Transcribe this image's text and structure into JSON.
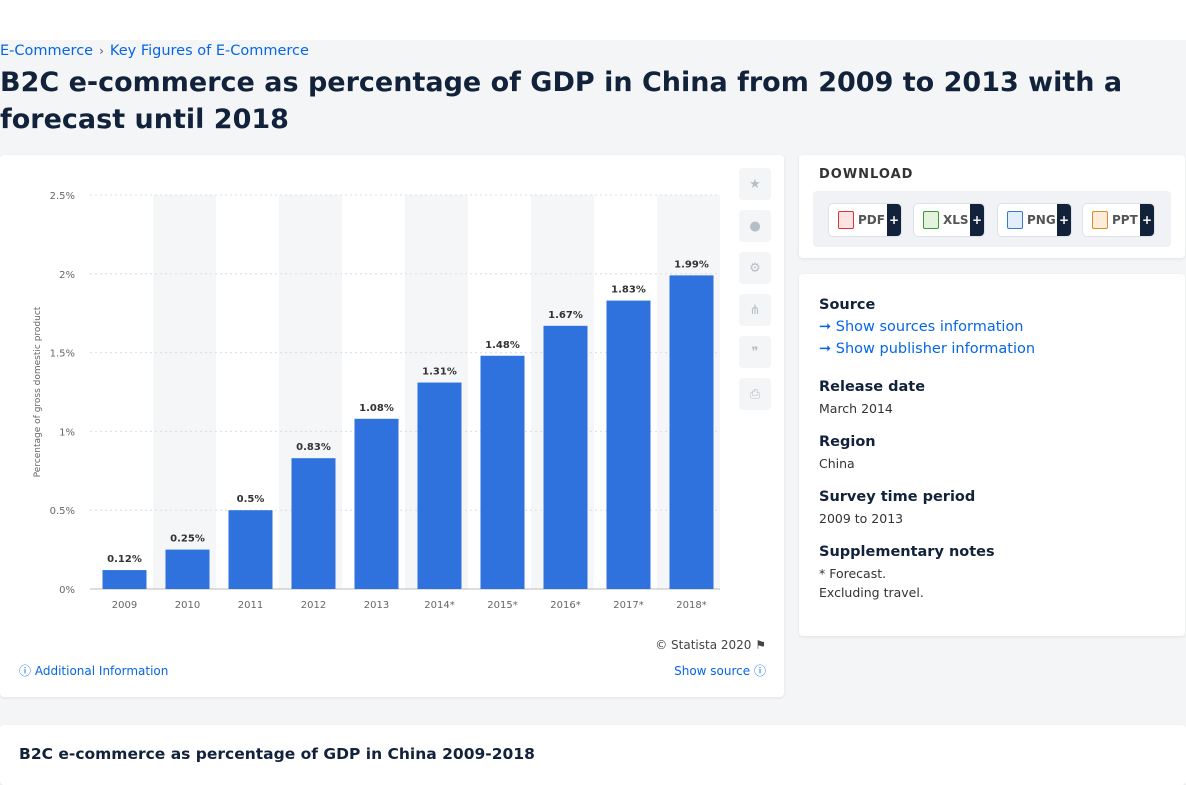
{
  "breadcrumb": [
    "E-Commerce",
    "Key Figures of E-Commerce"
  ],
  "page_title": "B2C e-commerce as percentage of GDP in China from 2009 to 2013 with a forecast until 2018",
  "chart_data": {
    "type": "bar",
    "categories": [
      "2009",
      "2010",
      "2011",
      "2012",
      "2013",
      "2014*",
      "2015*",
      "2016*",
      "2017*",
      "2018*"
    ],
    "values": [
      0.12,
      0.25,
      0.5,
      0.83,
      1.08,
      1.31,
      1.48,
      1.67,
      1.83,
      1.99
    ],
    "data_labels": [
      "0.12%",
      "0.25%",
      "0.5%",
      "0.83%",
      "1.08%",
      "1.31%",
      "1.48%",
      "1.67%",
      "1.83%",
      "1.99%"
    ],
    "ylabel": "Percentage of gross domestic product",
    "ylim": [
      0,
      2.5
    ],
    "yticks": [
      "0%",
      "0.5%",
      "1%",
      "1.5%",
      "2%",
      "2.5%"
    ],
    "bar_color": "#2f72de",
    "grid": true
  },
  "chart_footer": {
    "copyright": "© Statista 2020",
    "additional_info": "Additional Information",
    "show_source": "Show source"
  },
  "download": {
    "heading": "DOWNLOAD",
    "formats": [
      "PDF",
      "XLS",
      "PNG",
      "PPT"
    ],
    "plus": "+"
  },
  "details": {
    "source_heading": "Source",
    "show_sources": "Show sources information",
    "show_publisher": "Show publisher information",
    "release_heading": "Release date",
    "release_value": "March 2014",
    "region_heading": "Region",
    "region_value": "China",
    "survey_heading": "Survey time period",
    "survey_value": "2009 to 2013",
    "notes_heading": "Supplementary notes",
    "notes_1": "* Forecast.",
    "notes_2": "Excluding travel."
  },
  "bottom_title": "B2C e-commerce as percentage of GDP in China 2009-2018",
  "accent": "#0666e5"
}
